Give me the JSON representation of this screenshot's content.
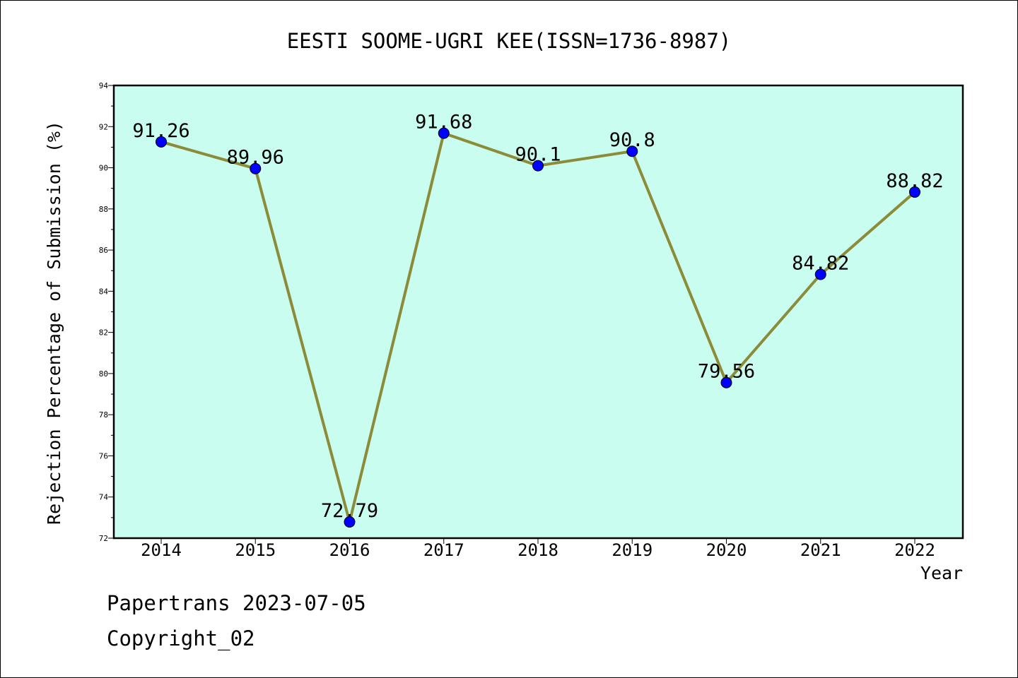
{
  "footer": {
    "line1": "Papertrans 2023-07-05",
    "line2": "Copyright_02"
  },
  "chart_data": {
    "type": "line",
    "title": "EESTI SOOME-UGRI KEE(ISSN=1736-8987)",
    "xlabel": "Year",
    "ylabel": "Rejection Percentage of Submission (%)",
    "categories": [
      "2014",
      "2015",
      "2016",
      "2017",
      "2018",
      "2019",
      "2020",
      "2021",
      "2022"
    ],
    "series": [
      {
        "values": [
          91.26,
          89.96,
          72.79,
          91.68,
          90.1,
          90.8,
          79.56,
          84.82,
          88.82
        ],
        "labels": [
          "91.26",
          "89.96",
          "72.79",
          "91.68",
          "90.1",
          "90.8",
          "79.56",
          "84.82",
          "88.82"
        ]
      }
    ],
    "ylim": [
      72,
      94
    ],
    "yticks": [
      72,
      74,
      76,
      78,
      80,
      82,
      84,
      86,
      88,
      90,
      92,
      94
    ],
    "grid": false,
    "colors": {
      "plot_background": "#c8fdef",
      "line": "#8b8b38",
      "marker": "#0000ff"
    }
  }
}
